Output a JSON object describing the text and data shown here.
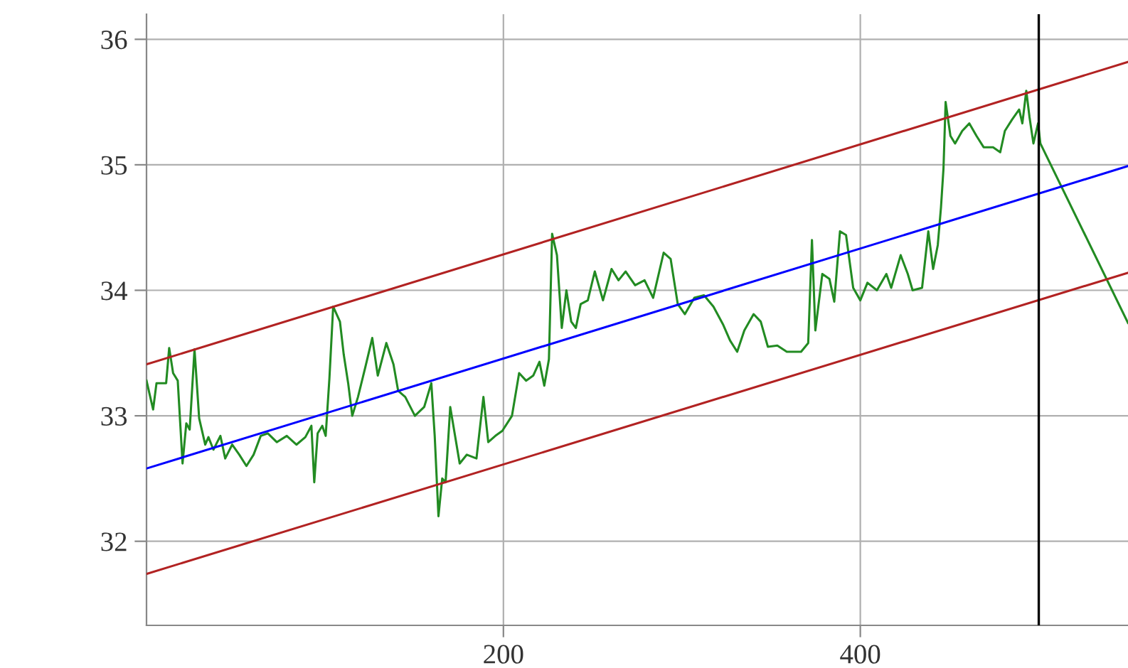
{
  "chart_data": {
    "type": "line",
    "xlim": [
      0,
      550
    ],
    "xticks": [
      200,
      400
    ],
    "ylim": [
      31.33,
      36.2
    ],
    "yticks": [
      32,
      33,
      34,
      35,
      36
    ],
    "grid": true,
    "series": [
      {
        "color": "#228b22",
        "x": [
          0,
          3.7,
          5.6,
          11,
          12.7,
          14.9,
          17.5,
          20.2,
          22.3,
          24.2,
          26.9,
          29.5,
          32.9,
          34.7,
          37.5,
          41.4,
          44.1,
          48,
          52,
          56,
          60,
          64,
          68,
          73,
          78.6,
          84,
          89,
          92.4,
          94,
          95.9,
          98.5,
          100.4,
          102.5,
          104.6,
          108.4,
          110.5,
          113,
          115.3,
          118.5,
          122.5,
          126.5,
          129.6,
          134.4,
          138.4,
          141,
          145,
          150.4,
          155.6,
          159.6,
          161.5,
          163.6,
          165.7,
          167.6,
          170.2,
          172.9,
          175.5,
          179.5,
          184.9,
          188.8,
          191.5,
          195.5,
          199.4,
          204.8,
          208.8,
          212.7,
          216.7,
          220.2,
          222.9,
          225.5,
          227.3,
          230,
          232.7,
          235.3,
          238,
          240.6,
          243.3,
          247.3,
          251.2,
          255.8,
          260.6,
          264.5,
          268.5,
          273.8,
          279.1,
          283.9,
          289.8,
          293.7,
          297.7,
          301.7,
          307,
          312.4,
          317.7,
          323,
          327,
          331,
          335,
          340.2,
          344.2,
          348.2,
          353.5,
          358.8,
          366.8,
          370.8,
          372.9,
          374.8,
          378.7,
          382.7,
          385.4,
          388.6,
          392,
          396,
          400,
          404,
          409.3,
          414.6,
          417.3,
          422.6,
          426.6,
          429.3,
          434.6,
          438.1,
          440.8,
          443.4,
          445.2,
          446.6,
          447.8,
          450.5,
          453.1,
          457.1,
          461.1,
          465.1,
          469.1,
          474.4,
          478.4,
          481,
          485,
          489,
          490.8,
          493,
          494.8,
          497,
          499.6,
          500.9,
          550
        ],
        "values": [
          33.28,
          33.05,
          33.26,
          33.26,
          33.54,
          33.34,
          33.28,
          32.62,
          32.94,
          32.89,
          33.53,
          32.98,
          32.77,
          32.83,
          32.73,
          32.84,
          32.66,
          32.77,
          32.69,
          32.6,
          32.69,
          32.84,
          32.86,
          32.79,
          32.84,
          32.77,
          32.83,
          32.92,
          32.47,
          32.86,
          32.92,
          32.84,
          33.3,
          33.87,
          33.75,
          33.49,
          33.26,
          33.0,
          33.15,
          33.38,
          33.62,
          33.32,
          33.58,
          33.41,
          33.2,
          33.15,
          33.0,
          33.07,
          33.26,
          32.84,
          32.2,
          32.5,
          32.47,
          33.07,
          32.84,
          32.62,
          32.69,
          32.66,
          33.15,
          32.79,
          32.84,
          32.88,
          33.0,
          33.34,
          33.28,
          33.32,
          33.43,
          33.24,
          33.45,
          34.45,
          34.28,
          33.7,
          34.0,
          33.75,
          33.7,
          33.89,
          33.92,
          34.15,
          33.92,
          34.17,
          34.08,
          34.15,
          34.04,
          34.08,
          33.94,
          34.3,
          34.25,
          33.89,
          33.81,
          33.94,
          33.96,
          33.87,
          33.73,
          33.6,
          33.51,
          33.68,
          33.81,
          33.75,
          33.55,
          33.56,
          33.51,
          33.51,
          33.58,
          34.4,
          33.68,
          34.13,
          34.09,
          33.91,
          34.47,
          34.44,
          34.02,
          33.92,
          34.06,
          34.0,
          34.13,
          34.02,
          34.28,
          34.13,
          34.0,
          34.02,
          34.47,
          34.17,
          34.36,
          34.66,
          34.97,
          35.5,
          35.23,
          35.17,
          35.27,
          35.33,
          35.23,
          35.14,
          35.14,
          35.1,
          35.27,
          35.36,
          35.44,
          35.33,
          35.59,
          35.38,
          35.17,
          35.33,
          35.17,
          33.74
        ]
      },
      {
        "color": "#0000ff",
        "x": [
          0,
          550
        ],
        "values": [
          32.58,
          34.99
        ]
      },
      {
        "color": "#b22222",
        "x": [
          0,
          550
        ],
        "values": [
          33.41,
          35.82
        ]
      },
      {
        "color": "#b22222",
        "x": [
          0,
          550
        ],
        "values": [
          31.74,
          34.14
        ]
      }
    ],
    "ref_lines": [
      {
        "axis": "x",
        "value": 500,
        "label": null,
        "color": "#000000"
      }
    ]
  }
}
